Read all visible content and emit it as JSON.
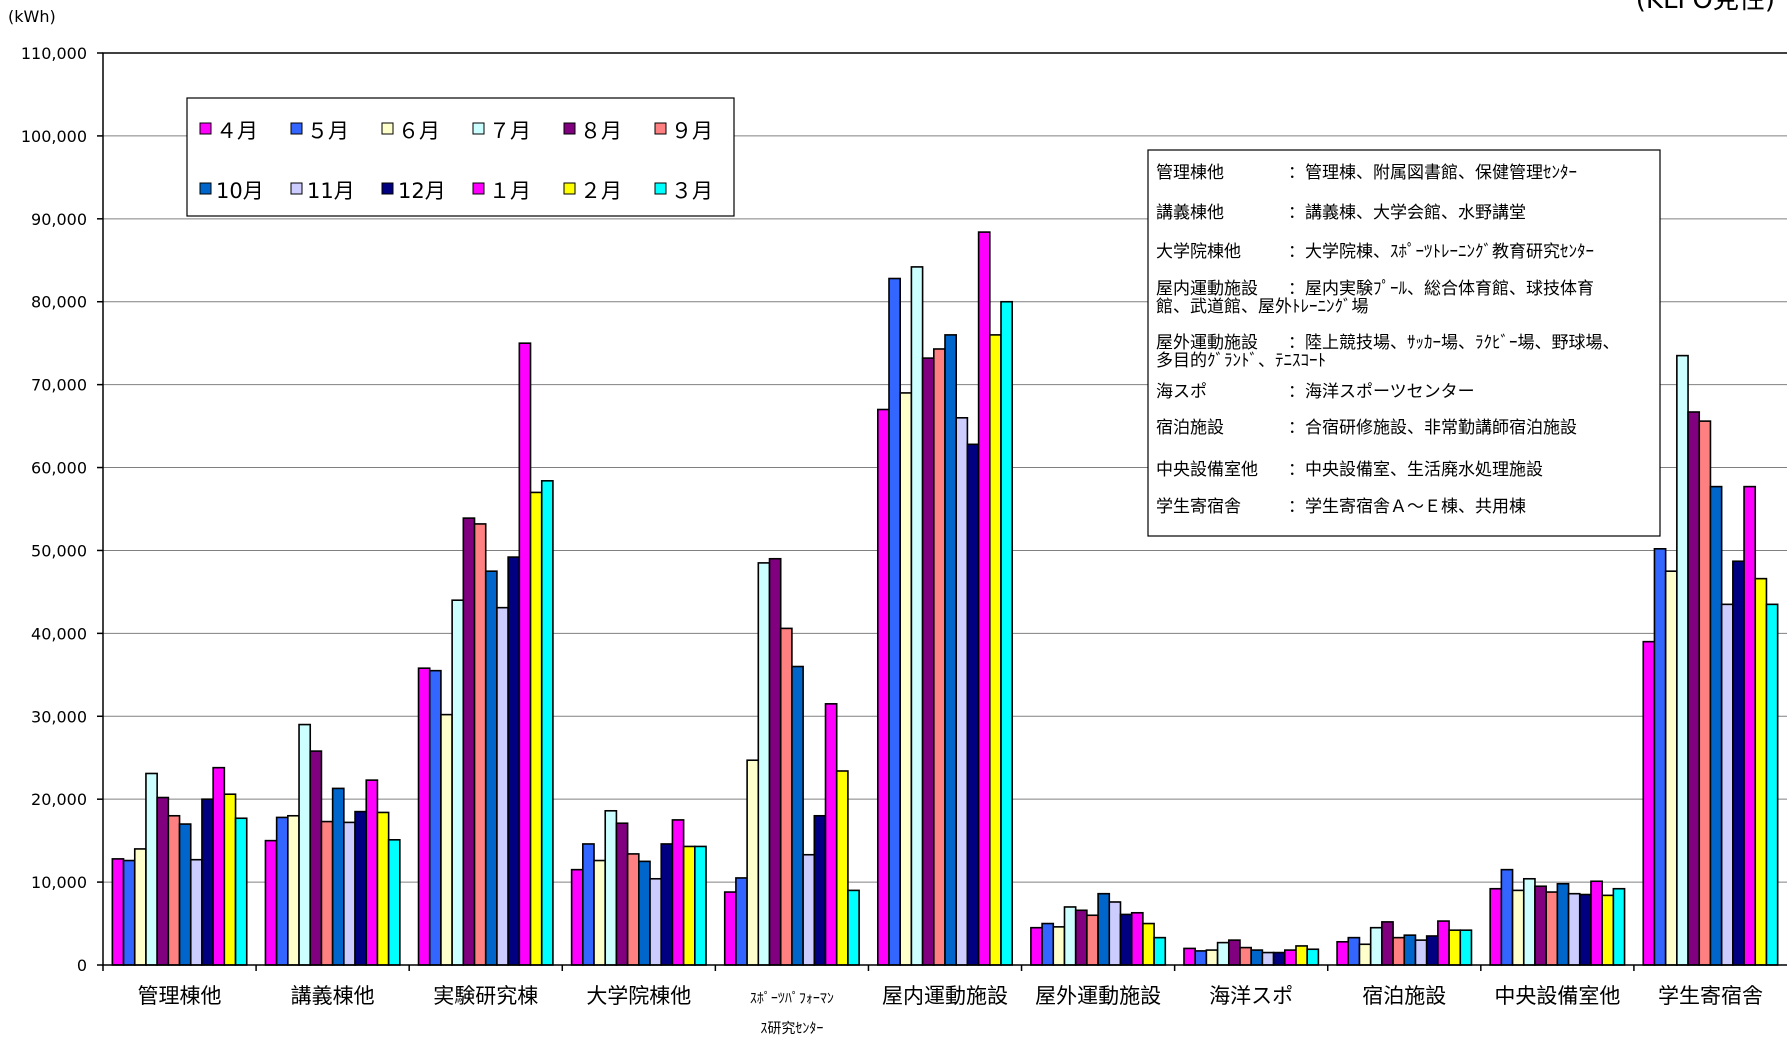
{
  "header": {
    "unit_label": "(kWh)",
    "corner_text": "(KLFO見性)"
  },
  "chart_data": {
    "type": "bar",
    "ylim": [
      0,
      110000
    ],
    "yticks": [
      "0",
      "10,000",
      "20,000",
      "30,000",
      "40,000",
      "50,000",
      "60,000",
      "70,000",
      "80,000",
      "90,000",
      "100,000",
      "110,000"
    ],
    "ytick_values": [
      0,
      10000,
      20000,
      30000,
      40000,
      50000,
      60000,
      70000,
      80000,
      90000,
      100000,
      110000
    ],
    "grid": true,
    "legend_position": "top-left",
    "categories": [
      "管理棟他",
      "講義棟他",
      "実験研究棟",
      "大学院棟他",
      "ｽﾎﾟｰﾂﾊﾟﾌｫｰﾏﾝｽ研究ｾﾝﾀｰ",
      "屋内運動施設",
      "屋外運動施設",
      "海洋スポ",
      "宿泊施設",
      "中央設備室他",
      "学生寄宿舎"
    ],
    "category_lines": [
      [
        "管理棟他"
      ],
      [
        "講義棟他"
      ],
      [
        "実験研究棟"
      ],
      [
        "大学院棟他"
      ],
      [
        "ｽﾎﾟｰﾂﾊﾟﾌｫｰﾏﾝ",
        "ｽ研究ｾﾝﾀｰ"
      ],
      [
        "屋内運動施設"
      ],
      [
        "屋外運動施設"
      ],
      [
        "海洋スポ"
      ],
      [
        "宿泊施設"
      ],
      [
        "中央設備室他"
      ],
      [
        "学生寄宿舎"
      ]
    ],
    "series": [
      {
        "name": "４月",
        "color": "#FF00FF",
        "values": [
          12800,
          15000,
          35800,
          11500,
          8800,
          67000,
          4500,
          2000,
          2800,
          9200,
          39000
        ]
      },
      {
        "name": "５月",
        "color": "#3366FF",
        "values": [
          12600,
          17800,
          35500,
          14600,
          10500,
          82800,
          5000,
          1700,
          3300,
          11500,
          50200
        ]
      },
      {
        "name": "６月",
        "color": "#FFFFCC",
        "values": [
          14000,
          18000,
          30200,
          12600,
          24700,
          69000,
          4600,
          1800,
          2500,
          9000,
          47500
        ]
      },
      {
        "name": "７月",
        "color": "#CCFFFF",
        "values": [
          23100,
          29000,
          44000,
          18600,
          48500,
          84200,
          7000,
          2700,
          4500,
          10400,
          73500
        ]
      },
      {
        "name": "８月",
        "color": "#800080",
        "values": [
          20200,
          25800,
          53900,
          17100,
          49000,
          73200,
          6600,
          3000,
          5200,
          9500,
          66700
        ]
      },
      {
        "name": "９月",
        "color": "#FF8080",
        "values": [
          18000,
          17300,
          53200,
          13400,
          40600,
          74300,
          6000,
          2100,
          3300,
          8800,
          65600
        ]
      },
      {
        "name": "10月",
        "color": "#0066CC",
        "values": [
          17000,
          21300,
          47500,
          12500,
          36000,
          76000,
          8600,
          1800,
          3600,
          9800,
          57700
        ]
      },
      {
        "name": "11月",
        "color": "#CCCCFF",
        "values": [
          12700,
          17200,
          43100,
          10400,
          13300,
          66000,
          7600,
          1500,
          3000,
          8600,
          43500
        ]
      },
      {
        "name": "12月",
        "color": "#000080",
        "values": [
          20000,
          18500,
          49200,
          14600,
          18000,
          62800,
          6100,
          1500,
          3500,
          8500,
          48700
        ]
      },
      {
        "name": "１月",
        "color": "#FF00FF",
        "values": [
          23800,
          22300,
          75000,
          17500,
          31500,
          88400,
          6300,
          1800,
          5300,
          10100,
          57700
        ]
      },
      {
        "name": "２月",
        "color": "#FFFF00",
        "values": [
          20600,
          18400,
          57000,
          14300,
          23400,
          76000,
          5000,
          2300,
          4200,
          8400,
          46600
        ]
      },
      {
        "name": "３月",
        "color": "#00FFFF",
        "values": [
          17700,
          15100,
          58400,
          14300,
          9000,
          80000,
          3300,
          1900,
          4200,
          9200,
          43500
        ]
      }
    ]
  },
  "notes": [
    {
      "term": "管理棟他",
      "desc": [
        "：管理棟、附属図書館、保健管理ｾﾝﾀｰ"
      ]
    },
    {
      "term": "講義棟他",
      "desc": [
        "：講義棟、大学会館、水野講堂"
      ]
    },
    {
      "term": "大学院棟他",
      "desc": [
        "：大学院棟、ｽﾎﾟｰﾂﾄﾚｰﾆﾝｸﾞ教育研究ｾﾝﾀｰ"
      ]
    },
    {
      "term": "屋内運動施設",
      "desc": [
        "：屋内実験ﾌﾟｰﾙ、総合体育館、球技体育",
        "館、武道館、屋外ﾄﾚｰﾆﾝｸﾞ場"
      ]
    },
    {
      "term": "屋外運動施設",
      "desc": [
        "：陸上競技場、ｻｯｶｰ場、ﾗｸﾋﾞｰ場、野球場、",
        "多目的ｸﾞﾗﾝﾄﾞ、ﾃﾆｽｺｰﾄ"
      ]
    },
    {
      "term": "海スポ",
      "desc": [
        "：海洋スポーツセンター"
      ]
    },
    {
      "term": "宿泊施設",
      "desc": [
        "：合宿研修施設、非常勤講師宿泊施設"
      ]
    },
    {
      "term": "中央設備室他",
      "desc": [
        "：中央設備室、生活廃水処理施設"
      ]
    },
    {
      "term": "学生寄宿舎",
      "desc": [
        "：学生寄宿舎Ａ～Ｅ棟、共用棟"
      ]
    }
  ]
}
